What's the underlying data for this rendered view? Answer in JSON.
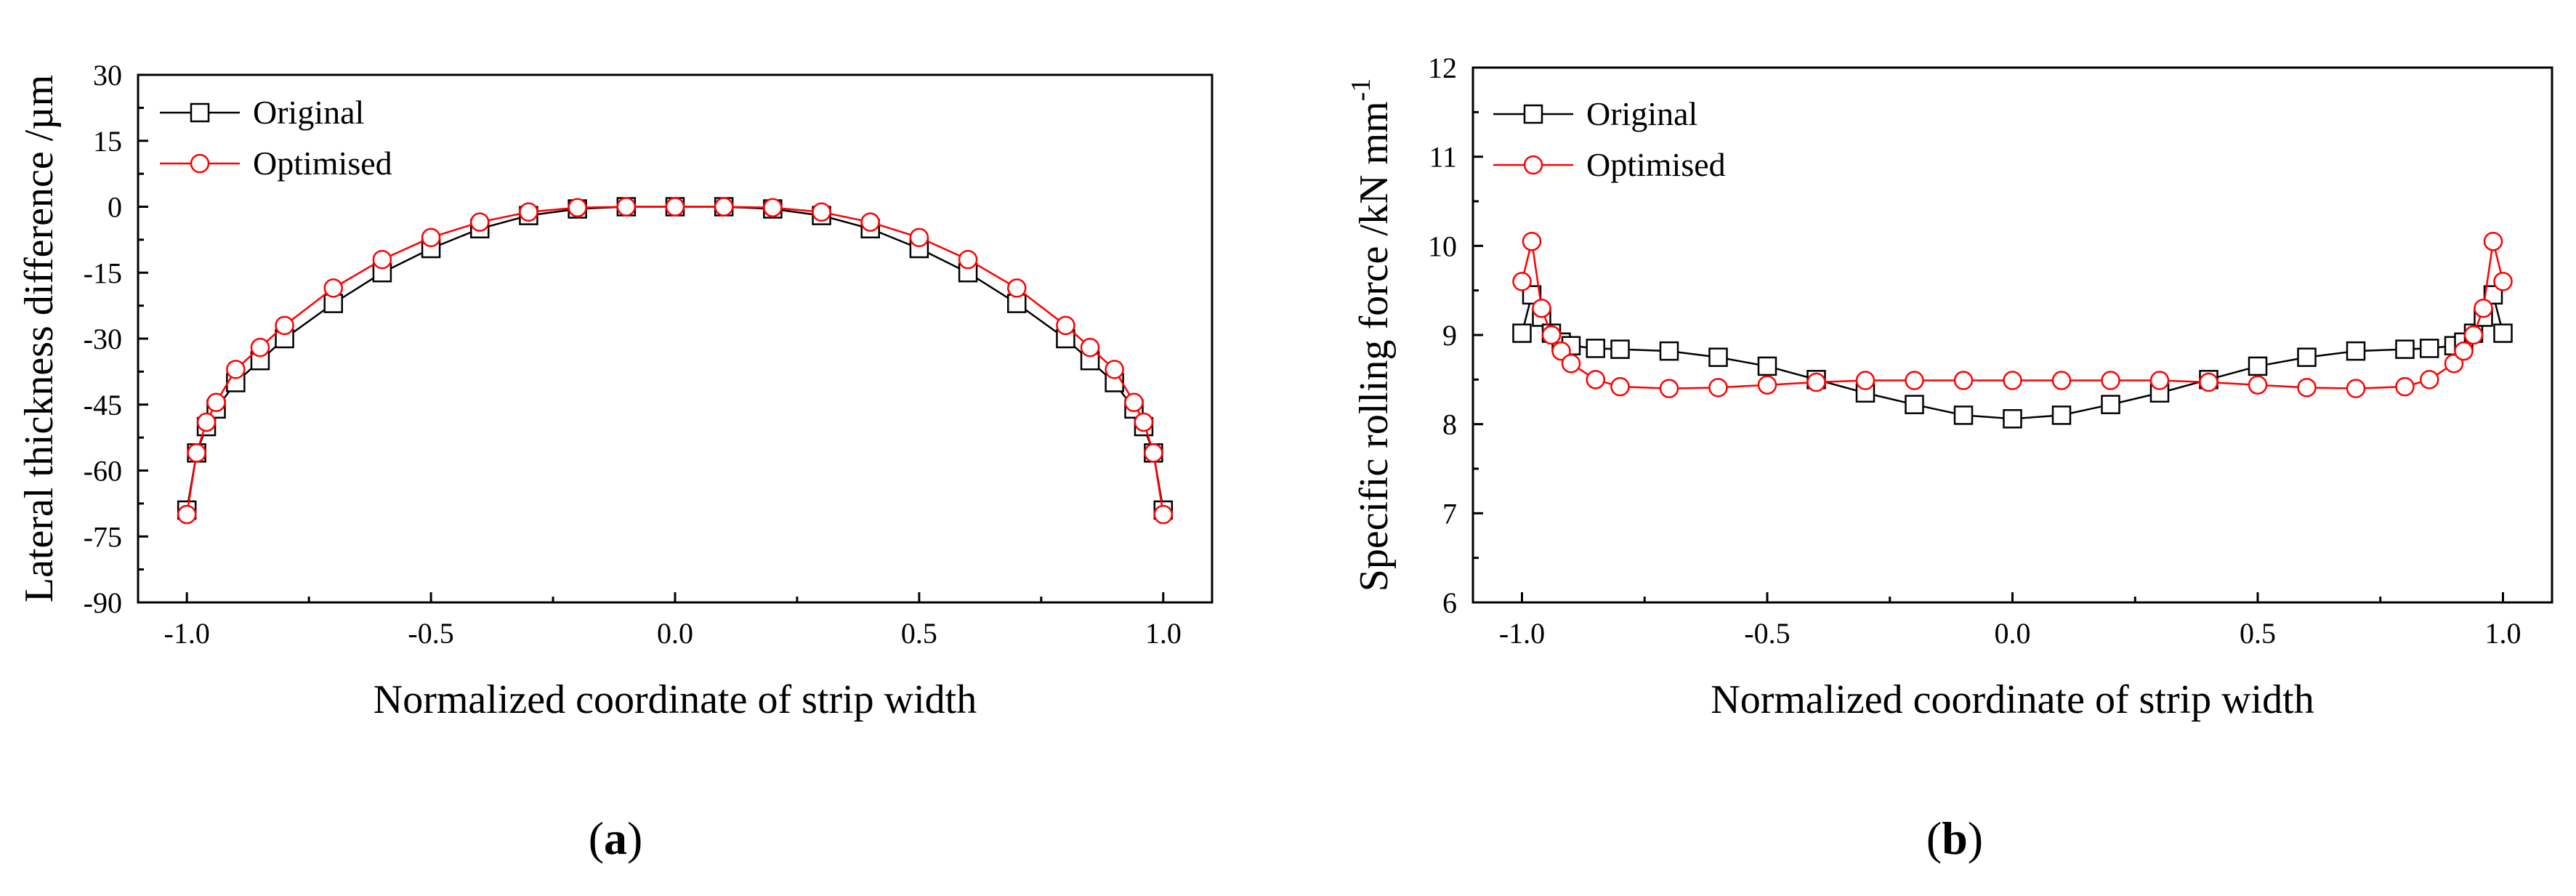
{
  "chart_data": [
    {
      "type": "line",
      "panel_label": "(a)",
      "xlabel": "Normalized coordinate of strip width",
      "ylabel": "Lateral thickness difference /µm",
      "xlim": [
        -1.1,
        1.1
      ],
      "ylim": [
        -90,
        30
      ],
      "xticks": [
        -1.0,
        -0.5,
        0.0,
        0.5,
        1.0
      ],
      "xtick_labels": [
        "-1.0",
        "-0.5",
        "0.0",
        "0.5",
        "1.0"
      ],
      "yticks": [
        -90,
        -75,
        -60,
        -45,
        -30,
        -15,
        0,
        15,
        30
      ],
      "ytick_labels": [
        "-90",
        "-75",
        "-60",
        "-45",
        "-30",
        "-15",
        "0",
        "15",
        "30"
      ],
      "legend": "top-left",
      "grid": false,
      "series": [
        {
          "name": "Original",
          "color": "#000000",
          "marker": "square",
          "x": [
            -1.0,
            -0.98,
            -0.96,
            -0.94,
            -0.9,
            -0.85,
            -0.8,
            -0.7,
            -0.6,
            -0.5,
            -0.4,
            -0.3,
            -0.2,
            -0.1,
            0.0,
            0.1,
            0.2,
            0.3,
            0.4,
            0.5,
            0.6,
            0.7,
            0.8,
            0.85,
            0.9,
            0.94,
            0.96,
            0.98,
            1.0
          ],
          "y": [
            -69,
            -56,
            -50,
            -46,
            -40,
            -35,
            -30,
            -22,
            -15,
            -9.5,
            -5,
            -2,
            -0.5,
            0,
            0,
            0,
            -0.5,
            -2,
            -5,
            -9.5,
            -15,
            -22,
            -30,
            -35,
            -40,
            -46,
            -50,
            -56,
            -69
          ]
        },
        {
          "name": "Optimised",
          "color": "#ff0000",
          "marker": "circle",
          "x": [
            -1.0,
            -0.98,
            -0.96,
            -0.94,
            -0.9,
            -0.85,
            -0.8,
            -0.7,
            -0.6,
            -0.5,
            -0.4,
            -0.3,
            -0.2,
            -0.1,
            0.0,
            0.1,
            0.2,
            0.3,
            0.4,
            0.5,
            0.6,
            0.7,
            0.8,
            0.85,
            0.9,
            0.94,
            0.96,
            0.98,
            1.0
          ],
          "y": [
            -70,
            -56,
            -49,
            -44.5,
            -37,
            -32,
            -27,
            -18.5,
            -12,
            -7,
            -3.5,
            -1.2,
            -0.2,
            0,
            0,
            0,
            -0.2,
            -1.2,
            -3.5,
            -7,
            -12,
            -18.5,
            -27,
            -32,
            -37,
            -44.5,
            -49,
            -56,
            -70
          ]
        }
      ]
    },
    {
      "type": "line",
      "panel_label": "(b)",
      "xlabel": "Normalized coordinate of strip width",
      "ylabel": "Specific rolling force /kN mm",
      "ylabel_superscript": "-1",
      "xlim": [
        -1.1,
        1.1
      ],
      "ylim": [
        6,
        12
      ],
      "xticks": [
        -1.0,
        -0.5,
        0.0,
        0.5,
        1.0
      ],
      "xtick_labels": [
        "-1.0",
        "-0.5",
        "0.0",
        "0.5",
        "1.0"
      ],
      "yticks": [
        6,
        7,
        8,
        9,
        10,
        11,
        12
      ],
      "ytick_labels": [
        "6",
        "7",
        "8",
        "9",
        "10",
        "11",
        "12"
      ],
      "legend": "top-left",
      "grid": false,
      "series": [
        {
          "name": "Original",
          "color": "#000000",
          "marker": "square",
          "x": [
            -1.0,
            -0.98,
            -0.96,
            -0.94,
            -0.92,
            -0.9,
            -0.85,
            -0.8,
            -0.7,
            -0.6,
            -0.5,
            -0.4,
            -0.3,
            -0.2,
            -0.1,
            0.0,
            0.1,
            0.2,
            0.3,
            0.4,
            0.5,
            0.6,
            0.7,
            0.8,
            0.85,
            0.9,
            0.92,
            0.94,
            0.96,
            0.98,
            1.0
          ],
          "y": [
            9.02,
            9.45,
            9.2,
            9.02,
            8.92,
            8.88,
            8.85,
            8.84,
            8.82,
            8.75,
            8.65,
            8.5,
            8.35,
            8.22,
            8.1,
            8.06,
            8.1,
            8.22,
            8.35,
            8.5,
            8.65,
            8.75,
            8.82,
            8.84,
            8.85,
            8.88,
            8.92,
            9.02,
            9.2,
            9.45,
            9.02
          ]
        },
        {
          "name": "Optimised",
          "color": "#ff0000",
          "marker": "circle",
          "x": [
            -1.0,
            -0.98,
            -0.96,
            -0.94,
            -0.92,
            -0.9,
            -0.85,
            -0.8,
            -0.7,
            -0.6,
            -0.5,
            -0.4,
            -0.3,
            -0.2,
            -0.1,
            0.0,
            0.1,
            0.2,
            0.3,
            0.4,
            0.5,
            0.6,
            0.7,
            0.8,
            0.85,
            0.9,
            0.92,
            0.94,
            0.96,
            0.98,
            1.0
          ],
          "y": [
            9.6,
            10.05,
            9.3,
            9.0,
            8.82,
            8.68,
            8.5,
            8.42,
            8.4,
            8.41,
            8.44,
            8.47,
            8.49,
            8.49,
            8.49,
            8.49,
            8.49,
            8.49,
            8.49,
            8.47,
            8.44,
            8.41,
            8.4,
            8.42,
            8.5,
            8.68,
            8.82,
            9.0,
            9.3,
            10.05,
            9.6
          ]
        }
      ]
    }
  ]
}
